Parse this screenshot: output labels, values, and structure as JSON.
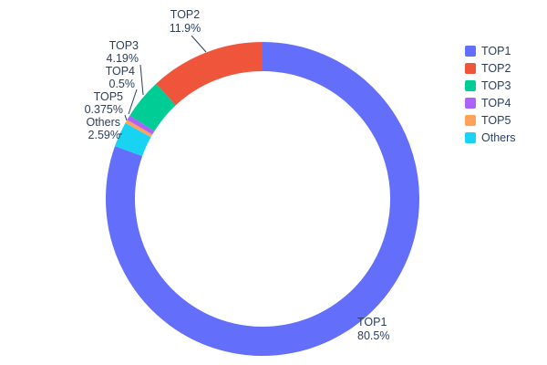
{
  "figure": {
    "background": "#ffffff",
    "text_color": "#2a3f5f"
  },
  "chart_data": {
    "type": "pie",
    "hole": 0.81,
    "direction": "clockwise",
    "start_angle_deg": 0,
    "legend_position": "right",
    "slices": [
      {
        "label": "TOP1",
        "value": 80.5,
        "pct_label": "80.5%",
        "color": "#636efa"
      },
      {
        "label": "Others",
        "value": 2.59,
        "pct_label": "2.59%",
        "color": "#19d3f3"
      },
      {
        "label": "TOP5",
        "value": 0.375,
        "pct_label": "0.375%",
        "color": "#ffa15a"
      },
      {
        "label": "TOP4",
        "value": 0.5,
        "pct_label": "0.5%",
        "color": "#ab63fa"
      },
      {
        "label": "TOP3",
        "value": 4.19,
        "pct_label": "4.19%",
        "color": "#00cc96"
      },
      {
        "label": "TOP2",
        "value": 11.9,
        "pct_label": "11.9%",
        "color": "#ef553b"
      }
    ],
    "legend": [
      {
        "label": "TOP1",
        "color": "#636efa"
      },
      {
        "label": "TOP2",
        "color": "#ef553b"
      },
      {
        "label": "TOP3",
        "color": "#00cc96"
      },
      {
        "label": "TOP4",
        "color": "#ab63fa"
      },
      {
        "label": "TOP5",
        "color": "#ffa15a"
      },
      {
        "label": "Others",
        "color": "#19d3f3"
      }
    ]
  }
}
